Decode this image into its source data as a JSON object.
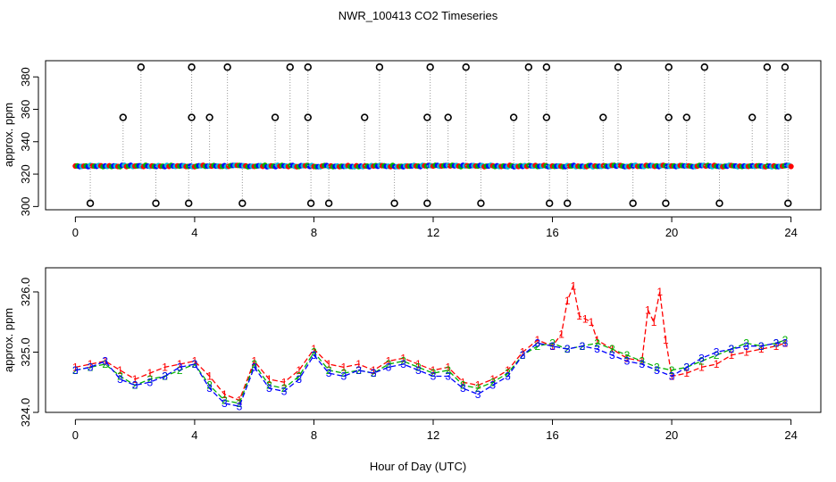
{
  "chart_data": [
    {
      "type": "scatter",
      "title": "NWR_100413  CO2 Timeseries",
      "xlabel": "Hour of Day (UTC)",
      "ylabel": "approx. ppm",
      "xlim": [
        -1,
        25
      ],
      "ylim": [
        298,
        390
      ],
      "xticks": [
        0,
        4,
        8,
        12,
        16,
        20,
        24
      ],
      "yticks": [
        300,
        320,
        340,
        360,
        380
      ],
      "ytick_labels": [
        "300",
        "320",
        "340",
        "360",
        "380"
      ],
      "baseline_ppm": 325,
      "series": [
        {
          "name": "1",
          "color": "#ff0000"
        },
        {
          "name": "2",
          "color": "#00b000"
        },
        {
          "name": "3",
          "color": "#0000ff"
        }
      ],
      "outliers_high": [
        2.2,
        3.9,
        5.1,
        7.2,
        7.8,
        10.2,
        11.9,
        13.1,
        15.2,
        15.8,
        18.2,
        19.9,
        21.1,
        23.2,
        23.8
      ],
      "outliers_mid": [
        1.6,
        3.9,
        4.5,
        6.7,
        7.8,
        9.7,
        11.8,
        12.5,
        14.7,
        15.8,
        17.7,
        19.9,
        20.5,
        22.7,
        23.9
      ],
      "outliers_low": [
        0.5,
        2.7,
        3.8,
        5.6,
        7.9,
        8.5,
        10.7,
        11.8,
        13.6,
        15.9,
        16.5,
        18.7,
        19.8,
        21.6,
        23.9
      ],
      "outlier_values": {
        "high": 386,
        "mid": 355,
        "low": 302
      }
    },
    {
      "type": "line",
      "title": "",
      "xlabel": "Hour of Day (UTC)",
      "ylabel": "approx. ppm",
      "xlim": [
        -1,
        25
      ],
      "ylim": [
        324.0,
        326.4
      ],
      "xticks": [
        0,
        4,
        8,
        12,
        16,
        20,
        24
      ],
      "yticks": [
        324.0,
        325.0,
        326.0
      ],
      "ytick_labels": [
        "324.0",
        "325.0",
        "326.0"
      ],
      "series": [
        {
          "name": "1",
          "label": "1",
          "color": "#ff0000",
          "x": [
            0.0,
            0.5,
            1.0,
            1.5,
            2.0,
            2.5,
            3.0,
            3.5,
            4.0,
            4.5,
            5.0,
            5.5,
            6.0,
            6.5,
            7.0,
            7.5,
            8.0,
            8.5,
            9.0,
            9.5,
            10.0,
            10.5,
            11.0,
            11.5,
            12.0,
            12.5,
            13.0,
            13.5,
            14.0,
            14.5,
            15.0,
            15.5,
            16.0,
            16.3,
            16.5,
            16.7,
            16.9,
            17.1,
            17.3,
            17.5,
            18.0,
            18.5,
            19.0,
            19.2,
            19.4,
            19.6,
            19.8,
            20.0,
            20.5,
            21.0,
            21.5,
            22.0,
            22.5,
            23.0,
            23.5,
            23.8
          ],
          "y": [
            324.75,
            324.8,
            324.85,
            324.7,
            324.55,
            324.65,
            324.75,
            324.8,
            324.85,
            324.6,
            324.3,
            324.2,
            324.85,
            324.55,
            324.5,
            324.7,
            325.05,
            324.8,
            324.75,
            324.8,
            324.7,
            324.85,
            324.9,
            324.8,
            324.7,
            324.75,
            324.5,
            324.45,
            324.55,
            324.7,
            325.0,
            325.2,
            325.1,
            325.3,
            325.85,
            326.1,
            325.6,
            325.55,
            325.5,
            325.2,
            325.05,
            324.9,
            324.85,
            325.7,
            325.5,
            326.0,
            325.2,
            324.6,
            324.65,
            324.75,
            324.8,
            324.95,
            325.0,
            325.05,
            325.1,
            325.15
          ]
        },
        {
          "name": "2",
          "label": "2",
          "color": "#00b000",
          "x": [
            0.0,
            0.5,
            1.0,
            1.5,
            2.0,
            2.5,
            3.0,
            3.5,
            4.0,
            4.5,
            5.0,
            5.5,
            6.0,
            6.5,
            7.0,
            7.5,
            8.0,
            8.5,
            9.0,
            9.5,
            10.0,
            10.5,
            11.0,
            11.5,
            12.0,
            12.5,
            13.0,
            13.5,
            14.0,
            14.5,
            15.0,
            15.5,
            16.0,
            16.5,
            17.0,
            17.5,
            18.0,
            18.5,
            19.0,
            19.5,
            20.0,
            20.5,
            21.0,
            21.5,
            22.0,
            22.5,
            23.0,
            23.5,
            23.8
          ],
          "y": [
            324.7,
            324.75,
            324.8,
            324.6,
            324.45,
            324.55,
            324.6,
            324.7,
            324.8,
            324.45,
            324.2,
            324.15,
            324.8,
            324.45,
            324.4,
            324.6,
            325.0,
            324.7,
            324.65,
            324.7,
            324.65,
            324.8,
            324.85,
            324.75,
            324.65,
            324.7,
            324.45,
            324.4,
            324.5,
            324.65,
            324.95,
            325.1,
            325.15,
            325.05,
            325.1,
            325.15,
            325.05,
            324.95,
            324.85,
            324.75,
            324.7,
            324.75,
            324.85,
            324.95,
            325.05,
            325.15,
            325.1,
            325.15,
            325.2
          ]
        },
        {
          "name": "3",
          "label": "3",
          "color": "#0000ff",
          "x": [
            0.0,
            0.5,
            1.0,
            1.5,
            2.0,
            2.5,
            3.0,
            3.5,
            4.0,
            4.5,
            5.0,
            5.5,
            6.0,
            6.5,
            7.0,
            7.5,
            8.0,
            8.5,
            9.0,
            9.5,
            10.0,
            10.5,
            11.0,
            11.5,
            12.0,
            12.5,
            13.0,
            13.5,
            14.0,
            14.5,
            15.0,
            15.5,
            16.0,
            16.5,
            17.0,
            17.5,
            18.0,
            18.5,
            19.0,
            19.5,
            20.0,
            20.5,
            21.0,
            21.5,
            22.0,
            22.5,
            23.0,
            23.5,
            23.8
          ],
          "y": [
            324.7,
            324.75,
            324.85,
            324.55,
            324.45,
            324.5,
            324.6,
            324.75,
            324.8,
            324.4,
            324.15,
            324.1,
            324.75,
            324.4,
            324.35,
            324.55,
            324.95,
            324.65,
            324.6,
            324.7,
            324.65,
            324.75,
            324.8,
            324.7,
            324.6,
            324.6,
            324.4,
            324.3,
            324.45,
            324.6,
            324.95,
            325.15,
            325.1,
            325.05,
            325.1,
            325.05,
            324.95,
            324.85,
            324.8,
            324.7,
            324.6,
            324.75,
            324.9,
            325.0,
            325.05,
            325.1,
            325.1,
            325.15,
            325.15
          ]
        }
      ]
    }
  ]
}
